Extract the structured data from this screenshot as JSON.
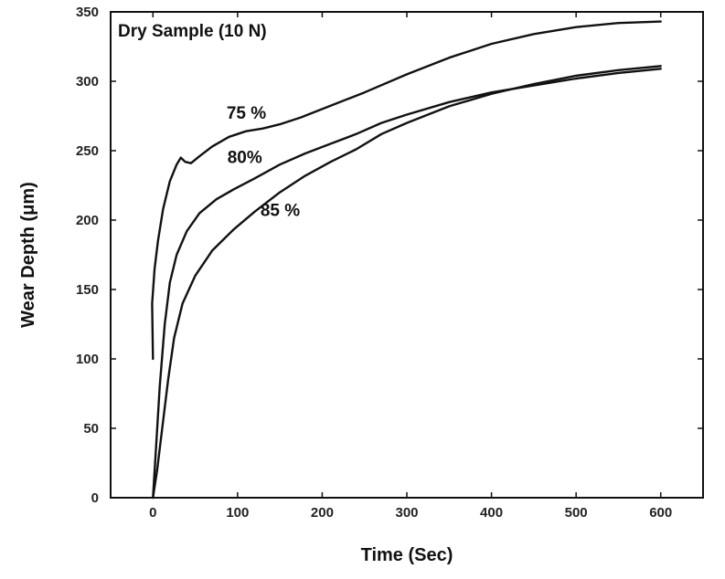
{
  "chart_data": {
    "type": "line",
    "title": "Dry Sample (10 N)",
    "xlabel": "Time (Sec)",
    "ylabel": "Wear Depth (μm)",
    "xlim": [
      -50,
      650
    ],
    "ylim": [
      0,
      350
    ],
    "x_ticks": [
      0,
      100,
      200,
      300,
      400,
      500,
      600
    ],
    "y_ticks": [
      0,
      50,
      100,
      150,
      200,
      250,
      300,
      350
    ],
    "grid": false,
    "legend": "none",
    "series": [
      {
        "name": "75 %",
        "points": [
          [
            0,
            100
          ],
          [
            -1,
            140
          ],
          [
            2,
            165
          ],
          [
            6,
            185
          ],
          [
            12,
            208
          ],
          [
            20,
            228
          ],
          [
            28,
            240
          ],
          [
            33,
            245
          ],
          [
            38,
            242
          ],
          [
            45,
            241
          ],
          [
            55,
            246
          ],
          [
            70,
            253
          ],
          [
            90,
            260
          ],
          [
            110,
            264
          ],
          [
            130,
            266
          ],
          [
            150,
            269
          ],
          [
            175,
            274
          ],
          [
            200,
            280
          ],
          [
            250,
            292
          ],
          [
            300,
            305
          ],
          [
            350,
            317
          ],
          [
            400,
            327
          ],
          [
            450,
            334
          ],
          [
            500,
            339
          ],
          [
            550,
            342
          ],
          [
            600,
            343
          ]
        ]
      },
      {
        "name": "80%",
        "points": [
          [
            0,
            0
          ],
          [
            3,
            30
          ],
          [
            8,
            80
          ],
          [
            14,
            125
          ],
          [
            20,
            155
          ],
          [
            28,
            175
          ],
          [
            40,
            192
          ],
          [
            55,
            205
          ],
          [
            75,
            215
          ],
          [
            95,
            222
          ],
          [
            120,
            230
          ],
          [
            150,
            240
          ],
          [
            180,
            248
          ],
          [
            210,
            255
          ],
          [
            240,
            262
          ],
          [
            270,
            270
          ],
          [
            300,
            276
          ],
          [
            350,
            285
          ],
          [
            400,
            292
          ],
          [
            450,
            297
          ],
          [
            500,
            302
          ],
          [
            550,
            306
          ],
          [
            600,
            309
          ]
        ]
      },
      {
        "name": "85 %",
        "points": [
          [
            0,
            0
          ],
          [
            5,
            20
          ],
          [
            10,
            45
          ],
          [
            18,
            85
          ],
          [
            25,
            115
          ],
          [
            35,
            140
          ],
          [
            50,
            160
          ],
          [
            70,
            178
          ],
          [
            95,
            193
          ],
          [
            120,
            206
          ],
          [
            150,
            220
          ],
          [
            180,
            232
          ],
          [
            210,
            242
          ],
          [
            240,
            251
          ],
          [
            270,
            262
          ],
          [
            300,
            270
          ],
          [
            350,
            282
          ],
          [
            400,
            291
          ],
          [
            450,
            298
          ],
          [
            500,
            304
          ],
          [
            550,
            308
          ],
          [
            600,
            311
          ]
        ]
      }
    ],
    "annotations": [
      {
        "text": "75 %",
        "x": 87,
        "y": 273
      },
      {
        "text": "80%",
        "x": 88,
        "y": 241
      },
      {
        "text": "85 %",
        "x": 127,
        "y": 203
      }
    ]
  }
}
